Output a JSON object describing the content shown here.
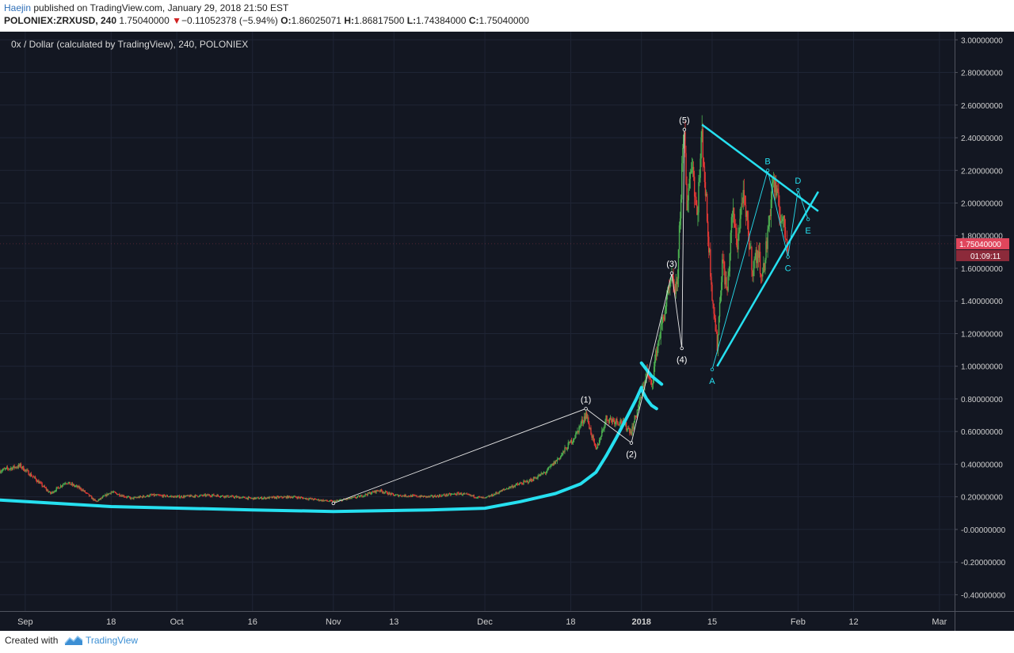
{
  "header": {
    "author": "Haejin",
    "published": "published on TradingView.com, January 29, 2018 21:50 EST",
    "symbol": "POLONIEX:ZRXUSD, 240",
    "last": "1.75040000",
    "change_arrow": "▼",
    "change": "−0.11052378 (−5.94%)",
    "o_label": "O:",
    "o_val": "1.86025071",
    "h_label": "H:",
    "h_val": "1.86817500",
    "l_label": "L:",
    "l_val": "1.74384000",
    "c_label": "C:",
    "c_val": "1.75040000"
  },
  "chart_title": "0x / Dollar (calculated by TradingView), 240, POLONIEX",
  "price_tag": {
    "value": "1.75040000",
    "timer": "01:09:11"
  },
  "footer": {
    "created": "Created with",
    "brand": "TradingView"
  },
  "colors": {
    "background": "#131722",
    "up": "#4caf50",
    "down": "#e53935",
    "cyan": "#26e0f0",
    "price_tag": "#e0465c",
    "text": "#cfcfcf"
  },
  "icons": {
    "brand": "tradingview-logo-icon"
  },
  "chart_data": {
    "type": "candlestick",
    "title": "0x / Dollar (calculated by TradingView), 240, POLONIEX",
    "ylim": [
      -0.5,
      3.05
    ],
    "y_ticks": [
      "3.00000000",
      "2.80000000",
      "2.60000000",
      "2.40000000",
      "2.20000000",
      "2.00000000",
      "1.80000000",
      "1.60000000",
      "1.40000000",
      "1.20000000",
      "1.00000000",
      "0.80000000",
      "0.60000000",
      "0.40000000",
      "0.20000000",
      "-0.00000000",
      "-0.20000000",
      "-0.40000000"
    ],
    "y_tick_values": [
      3.0,
      2.8,
      2.6,
      2.4,
      2.2,
      2.0,
      1.8,
      1.6,
      1.4,
      1.2,
      1.0,
      0.8,
      0.6,
      0.4,
      0.2,
      0.0,
      -0.2,
      -0.4
    ],
    "x_ticks": [
      {
        "label": "Sep",
        "date": "2017-09-01"
      },
      {
        "label": "18",
        "date": "2017-09-18"
      },
      {
        "label": "Oct",
        "date": "2017-10-01"
      },
      {
        "label": "16",
        "date": "2017-10-16"
      },
      {
        "label": "Nov",
        "date": "2017-11-01"
      },
      {
        "label": "13",
        "date": "2017-11-13"
      },
      {
        "label": "Dec",
        "date": "2017-12-01"
      },
      {
        "label": "18",
        "date": "2017-12-18"
      },
      {
        "label": "2018",
        "date": "2018-01-01"
      },
      {
        "label": "15",
        "date": "2018-01-15"
      },
      {
        "label": "Feb",
        "date": "2018-02-01"
      },
      {
        "label": "12",
        "date": "2018-02-12"
      },
      {
        "label": "Mar",
        "date": "2018-03-01"
      }
    ],
    "x_range": [
      "2017-08-27",
      "2018-03-04"
    ],
    "grid": true,
    "price_path": [
      [
        "2017-08-27",
        0.36
      ],
      [
        "2017-08-31",
        0.39
      ],
      [
        "2017-09-03",
        0.31
      ],
      [
        "2017-09-06",
        0.22
      ],
      [
        "2017-09-09",
        0.29
      ],
      [
        "2017-09-12",
        0.25
      ],
      [
        "2017-09-15",
        0.17
      ],
      [
        "2017-09-18",
        0.23
      ],
      [
        "2017-09-22",
        0.19
      ],
      [
        "2017-09-26",
        0.21
      ],
      [
        "2017-10-01",
        0.2
      ],
      [
        "2017-10-08",
        0.21
      ],
      [
        "2017-10-16",
        0.19
      ],
      [
        "2017-10-24",
        0.2
      ],
      [
        "2017-11-01",
        0.17
      ],
      [
        "2017-11-06",
        0.2
      ],
      [
        "2017-11-10",
        0.24
      ],
      [
        "2017-11-13",
        0.21
      ],
      [
        "2017-11-20",
        0.2
      ],
      [
        "2017-11-26",
        0.22
      ],
      [
        "2017-12-01",
        0.19
      ],
      [
        "2017-12-06",
        0.26
      ],
      [
        "2017-12-10",
        0.3
      ],
      [
        "2017-12-13",
        0.35
      ],
      [
        "2017-12-16",
        0.45
      ],
      [
        "2017-12-19",
        0.58
      ],
      [
        "2017-12-21",
        0.71
      ],
      [
        "2017-12-23",
        0.48
      ],
      [
        "2017-12-25",
        0.68
      ],
      [
        "2017-12-28",
        0.66
      ],
      [
        "2017-12-30",
        0.6
      ],
      [
        "2018-01-01",
        0.82
      ],
      [
        "2018-01-02",
        0.97
      ],
      [
        "2018-01-03",
        0.88
      ],
      [
        "2018-01-04",
        1.1
      ],
      [
        "2018-01-05",
        1.25
      ],
      [
        "2018-01-06",
        1.4
      ],
      [
        "2018-01-07",
        1.52
      ],
      [
        "2018-01-08",
        1.46
      ],
      [
        "2018-01-09",
        2.2
      ],
      [
        "2018-01-09T12:00",
        2.42
      ],
      [
        "2018-01-10",
        2.0
      ],
      [
        "2018-01-11",
        2.28
      ],
      [
        "2018-01-12",
        1.92
      ],
      [
        "2018-01-13",
        2.43
      ],
      [
        "2018-01-14",
        1.9
      ],
      [
        "2018-01-15",
        1.45
      ],
      [
        "2018-01-16",
        1.12
      ],
      [
        "2018-01-17",
        1.65
      ],
      [
        "2018-01-18",
        1.45
      ],
      [
        "2018-01-19",
        1.95
      ],
      [
        "2018-01-20",
        1.75
      ],
      [
        "2018-01-21",
        2.05
      ],
      [
        "2018-01-22",
        1.85
      ],
      [
        "2018-01-23",
        1.6
      ],
      [
        "2018-01-24",
        1.7
      ],
      [
        "2018-01-25",
        1.55
      ],
      [
        "2018-01-26",
        1.8
      ],
      [
        "2018-01-27",
        2.15
      ],
      [
        "2018-01-28",
        2.0
      ],
      [
        "2018-01-29",
        1.88
      ],
      [
        "2018-01-30",
        1.75
      ]
    ],
    "current_price": 1.7504,
    "moving_average": [
      [
        "2017-08-27",
        0.18
      ],
      [
        "2017-09-18",
        0.14
      ],
      [
        "2017-10-16",
        0.12
      ],
      [
        "2017-11-01",
        0.11
      ],
      [
        "2017-11-20",
        0.12
      ],
      [
        "2017-12-01",
        0.13
      ],
      [
        "2017-12-08",
        0.17
      ],
      [
        "2017-12-15",
        0.22
      ],
      [
        "2017-12-20",
        0.28
      ],
      [
        "2017-12-23",
        0.35
      ],
      [
        "2017-12-25",
        0.45
      ],
      [
        "2017-12-27",
        0.56
      ],
      [
        "2017-12-29",
        0.68
      ],
      [
        "2017-12-31",
        0.8
      ],
      [
        "2018-01-01",
        0.87
      ]
    ],
    "ma_branches": [
      [
        [
          "2018-01-01",
          1.02
        ],
        [
          "2018-01-03",
          0.94
        ],
        [
          "2018-01-05",
          0.89
        ]
      ],
      [
        [
          "2018-01-01",
          0.86
        ],
        [
          "2018-01-02",
          0.8
        ],
        [
          "2018-01-03",
          0.76
        ],
        [
          "2018-01-04",
          0.74
        ]
      ]
    ],
    "wave_lines": [
      [
        [
          "2017-11-01",
          0.16
        ],
        [
          "2017-12-21",
          0.74
        ],
        [
          "2017-12-30",
          0.53
        ],
        [
          "2018-01-07",
          1.57
        ],
        [
          "2018-01-09",
          1.11
        ],
        [
          "2018-01-09T12:00",
          2.45
        ]
      ]
    ],
    "wave_labels": [
      {
        "text": "(1)",
        "x": "2017-12-21",
        "y": 0.74,
        "pos": "above"
      },
      {
        "text": "(2)",
        "x": "2017-12-30",
        "y": 0.53,
        "pos": "below"
      },
      {
        "text": "(3)",
        "x": "2018-01-07",
        "y": 1.57,
        "pos": "above"
      },
      {
        "text": "(4)",
        "x": "2018-01-09",
        "y": 1.11,
        "pos": "below"
      },
      {
        "text": "(5)",
        "x": "2018-01-09T12:00",
        "y": 2.45,
        "pos": "above"
      }
    ],
    "triangle_lines": [
      [
        [
          "2018-01-13",
          2.48
        ],
        [
          "2018-02-05",
          1.95
        ]
      ],
      [
        [
          "2018-01-16",
          1.0
        ],
        [
          "2018-02-05",
          2.07
        ]
      ],
      [
        [
          "2018-01-15",
          0.98
        ],
        [
          "2018-01-26",
          2.2
        ],
        [
          "2018-01-30",
          1.67
        ],
        [
          "2018-02-01",
          2.08
        ],
        [
          "2018-02-03",
          1.9
        ]
      ]
    ],
    "triangle_labels": [
      {
        "text": "A",
        "x": "2018-01-15",
        "y": 0.98,
        "pos": "below"
      },
      {
        "text": "B",
        "x": "2018-01-26",
        "y": 2.2,
        "pos": "above"
      },
      {
        "text": "C",
        "x": "2018-01-30",
        "y": 1.67,
        "pos": "below"
      },
      {
        "text": "D",
        "x": "2018-02-01",
        "y": 2.08,
        "pos": "above"
      },
      {
        "text": "E",
        "x": "2018-02-03",
        "y": 1.9,
        "pos": "below"
      }
    ]
  }
}
